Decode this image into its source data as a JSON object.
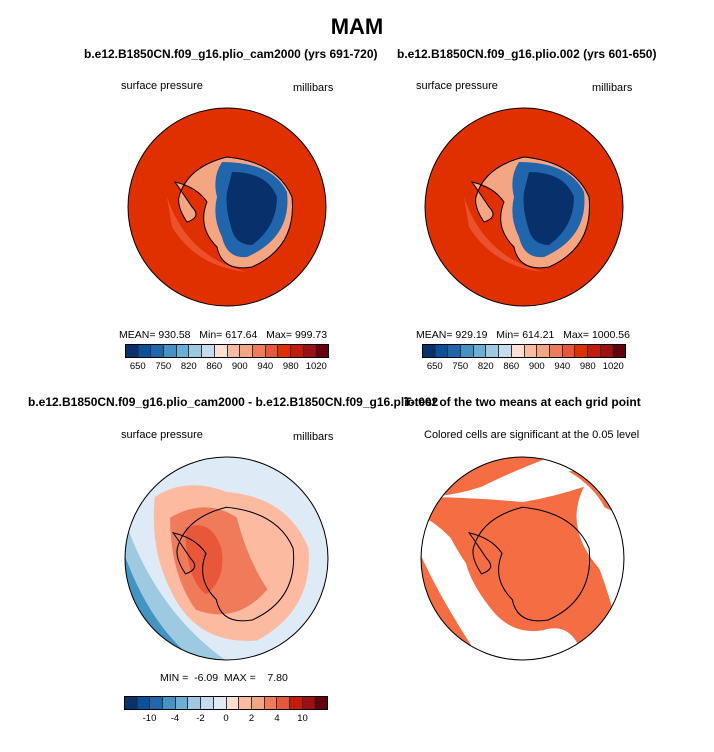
{
  "title": "MAM",
  "colors": {
    "red_deep": "#e03000",
    "red_mid": "#ef5a3a",
    "red_light": "#f4a582",
    "blue_deep": "#08306b",
    "blue_mid": "#2166ac",
    "blue_light": "#9ecae1",
    "white": "#f7f7f7",
    "signif": "#f46d43"
  },
  "panels": [
    {
      "title": "b.e12.B1850CN.f09_g16.plio_cam2000 (yrs 691-720)",
      "left_label": "surface pressure",
      "right_label": "millibars",
      "stats": "MEAN= 930.58   Min= 617.64   Max= 999.73"
    },
    {
      "title": "b.e12.B1850CN.f09_g16.plio.002 (yrs 601-650)",
      "left_label": "surface pressure",
      "right_label": "millibars",
      "stats": "MEAN= 929.19   Min= 614.21   Max= 1000.56"
    },
    {
      "title": "b.e12.B1850CN.f09_g16.plio_cam2000 - b.e12.B1850CN.f09_g16.plio.002",
      "left_label": "surface pressure",
      "right_label": "millibars",
      "stats": "MIN =  -6.09  MAX =    7.80"
    },
    {
      "title": "T-test of the two means at each grid point",
      "caption": "Colored cells are significant at the 0.05 level"
    }
  ],
  "chart_data": [
    {
      "type": "heatmap",
      "projection": "polar-stereographic south",
      "variable": "surface pressure",
      "units": "millibars",
      "mean": 930.58,
      "min": 617.64,
      "max": 999.73,
      "colorbar": {
        "ticks": [
          "650",
          "750",
          "820",
          "860",
          "900",
          "940",
          "980",
          "1020"
        ],
        "colors": [
          "#08306b",
          "#08519c",
          "#2166ac",
          "#4393c3",
          "#6baed6",
          "#9ecae1",
          "#c6dbef",
          "#fde0d2",
          "#fcbba1",
          "#f4a582",
          "#ef7b5b",
          "#e9573a",
          "#e03000",
          "#c41b0c",
          "#9f0f0f",
          "#67000d"
        ]
      }
    },
    {
      "type": "heatmap",
      "projection": "polar-stereographic south",
      "variable": "surface pressure",
      "units": "millibars",
      "mean": 929.19,
      "min": 614.21,
      "max": 1000.56,
      "colorbar": {
        "ticks": [
          "650",
          "750",
          "820",
          "860",
          "900",
          "940",
          "980",
          "1020"
        ],
        "colors": [
          "#08306b",
          "#08519c",
          "#2166ac",
          "#4393c3",
          "#6baed6",
          "#9ecae1",
          "#c6dbef",
          "#fde0d2",
          "#fcbba1",
          "#f4a582",
          "#ef7b5b",
          "#e9573a",
          "#e03000",
          "#c41b0c",
          "#9f0f0f",
          "#67000d"
        ]
      }
    },
    {
      "type": "heatmap",
      "projection": "polar-stereographic south",
      "variable": "surface pressure",
      "units": "millibars",
      "min": -6.09,
      "max": 7.8,
      "colorbar": {
        "ticks": [
          "-10",
          "-4",
          "-2",
          "0",
          "2",
          "4",
          "10"
        ],
        "colors": [
          "#08306b",
          "#08519c",
          "#2166ac",
          "#4393c3",
          "#6baed6",
          "#9ecae1",
          "#c6dbef",
          "#deebf7",
          "#fde0d2",
          "#fcbba1",
          "#f4a582",
          "#ef7b5b",
          "#e9573a",
          "#c41b0c",
          "#9f0f0f",
          "#67000d"
        ]
      }
    },
    {
      "type": "heatmap",
      "projection": "polar-stereographic south",
      "significance_level": 0.05
    }
  ]
}
